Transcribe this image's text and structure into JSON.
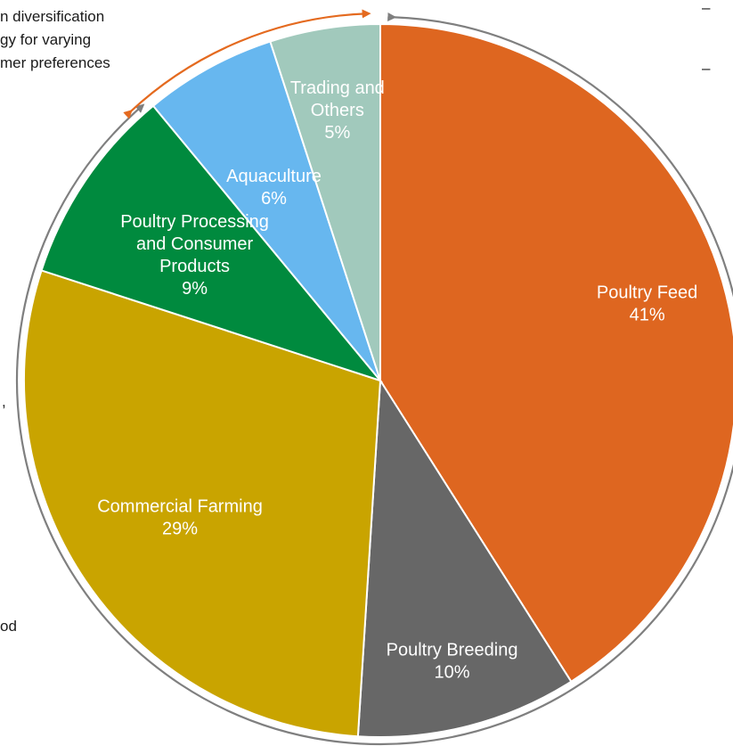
{
  "left_text_fragments": {
    "line1": "n diversification",
    "line2": "gy for varying",
    "line3": "mer preferences",
    "comma": ",",
    "od": "od"
  },
  "right_text_fragments": {
    "dash1": "–",
    "dash2": "–"
  },
  "chart_data": {
    "type": "pie",
    "title": "",
    "slices": [
      {
        "label_lines": [
          "Poultry Feed"
        ],
        "pct_label": "41%",
        "value": 41,
        "color": "#DE6620",
        "label_color": "#ffffff"
      },
      {
        "label_lines": [
          "Poultry Breeding"
        ],
        "pct_label": "10%",
        "value": 10,
        "color": "#676767",
        "label_color": "#ffffff"
      },
      {
        "label_lines": [
          "Commercial Farming"
        ],
        "pct_label": "29%",
        "value": 29,
        "color": "#C9A400",
        "label_color": "#ffffff"
      },
      {
        "label_lines": [
          "Poultry Processing",
          "and Consumer",
          "Products"
        ],
        "pct_label": "9%",
        "value": 9,
        "color": "#008A3E",
        "label_color": "#ffffff"
      },
      {
        "label_lines": [
          "Aquaculture"
        ],
        "pct_label": "6%",
        "value": 6,
        "color": "#67B7EF",
        "label_color": "#ffffff"
      },
      {
        "label_lines": [
          "Trading and",
          "Others"
        ],
        "pct_label": "5%",
        "value": 5,
        "color": "#A1C9BC",
        "label_color": "#ffffff"
      }
    ],
    "start_angle_deg": 0,
    "direction": "clockwise",
    "annotation_arcs": [
      {
        "name": "orange-arc",
        "color": "#E46A1F"
      },
      {
        "name": "gray-arc",
        "color": "#7F7F7F"
      }
    ]
  }
}
